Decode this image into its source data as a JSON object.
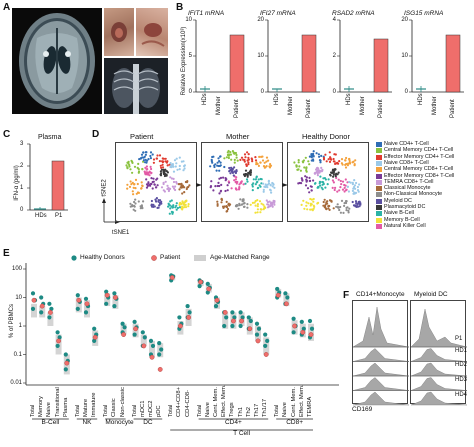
{
  "panel_labels": {
    "a": "A",
    "b": "B",
    "c": "C",
    "d": "D",
    "e": "E",
    "f": "F"
  },
  "panelB": {
    "ylabel": "Relative Expression(x10³)",
    "groups": [
      "HDs",
      "Mother",
      "Patient"
    ],
    "charts": [
      {
        "title": "IFIT1 mRNA",
        "yticks": [
          "0",
          "5",
          "10"
        ]
      },
      {
        "title": "IFI27 mRNA",
        "yticks": [
          "0",
          "10",
          "20"
        ]
      },
      {
        "title": "RSAD2 mRNA",
        "yticks": [
          "0",
          "2",
          "4"
        ]
      },
      {
        "title": "ISG15 mRNA",
        "yticks": [
          "0",
          "10",
          "20"
        ]
      }
    ]
  },
  "panelC": {
    "title": "Plasma",
    "ylabel": "IFN-α (pg/ml)",
    "yticks": [
      "0",
      "1",
      "2",
      "3"
    ],
    "groups": [
      "HDs",
      "P1"
    ]
  },
  "panelD": {
    "titles": [
      "Patient",
      "Mother",
      "Healthy Donor"
    ],
    "xlabel": "tSNE1",
    "ylabel": "tSNE2",
    "legend": [
      {
        "label": "Naive CD4+ T-Cell",
        "color": "#2f6db5"
      },
      {
        "label": "Central Memory CD4+ T-Cell",
        "color": "#8ac23f"
      },
      {
        "label": "Effector Memory CD4+ T-Cell",
        "color": "#e03a2f"
      },
      {
        "label": "Naive CD8+ T-Cell",
        "color": "#9bc9e8"
      },
      {
        "label": "Central Memory CD8+ T-Cell",
        "color": "#f4a13a"
      },
      {
        "label": "Effector Memory CD8+ T-Cell",
        "color": "#7a3a96"
      },
      {
        "label": "TEMRA CD8+ T-Cell",
        "color": "#c89ad8"
      },
      {
        "label": "Classical Monocyte",
        "color": "#a66a3a"
      },
      {
        "label": "Non-Classical Monocyte",
        "color": "#8e8e8e"
      },
      {
        "label": "Myeloid DC",
        "color": "#5a4fa0"
      },
      {
        "label": "Plasmacytoid DC",
        "color": "#3a3a3a"
      },
      {
        "label": "Naive B-Cell",
        "color": "#2bb3a6"
      },
      {
        "label": "Memory B-Cell",
        "color": "#f2e23a"
      },
      {
        "label": "Natural Killer Cell",
        "color": "#e35aa6"
      }
    ]
  },
  "panelE": {
    "legend": [
      "Healthy Donors",
      "Patient",
      "Age-Matched Range"
    ],
    "ylabel": "% of PBMCs",
    "yticks": [
      "100",
      "10",
      "1",
      "0.1",
      "0.01"
    ],
    "categories": [
      "Total",
      "Memory",
      "Naive",
      "Transitional",
      "Plasma",
      "Total",
      "Mature",
      "Immature",
      "Total",
      "Classic",
      "Non-classic",
      "Total",
      "mDC1",
      "mDC2",
      "pDC",
      "Total",
      "CD4+CD8+",
      "CD4-CD8-",
      "Total",
      "Naive",
      "Cent. Mem.",
      "Effect. Mem.",
      "Tregs",
      "Th1",
      "Th2",
      "Th17",
      "Th1/17",
      "Total",
      "Naive",
      "Cent. Mem.",
      "Effect. Mem.",
      "TEMRA"
    ],
    "groups": [
      "B-Cell",
      "NK",
      "Monocyte",
      "DC",
      "CD4+",
      "CD8+",
      "T Cell"
    ]
  },
  "panelF": {
    "titles": [
      "CD14+Monocyte",
      "Myeloid DC"
    ],
    "rows": [
      "P1",
      "HD1",
      "HD2",
      "HD3",
      "HD4"
    ],
    "xlabel": "CD169"
  }
}
